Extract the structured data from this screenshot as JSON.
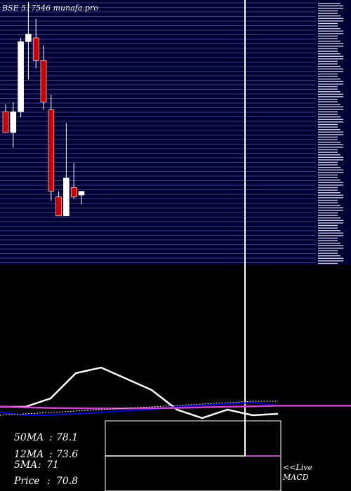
{
  "header": {
    "title": "BSE 517546  munafa.pro"
  },
  "stats": [
    {
      "label": "50MA",
      "value": "78.1"
    },
    {
      "label": "12MA",
      "value": "73.6"
    },
    {
      "label": "5MA",
      "value": "71"
    },
    {
      "label": "Price",
      "value": "70.8"
    }
  ],
  "macd": {
    "line1": "<<Live",
    "line2": "MACD"
  },
  "colors": {
    "panel_bg": "#000033",
    "grid": "#3b3b88",
    "up": "#ffffff",
    "down": "#cc0000",
    "signal": "#0000cc",
    "ma": "#cc44cc",
    "line": "#ffffff"
  },
  "chart_data": [
    {
      "type": "candlestick",
      "title": "BSE 517546  munafa.pro",
      "ylim": [
        55,
        125
      ],
      "grid": true,
      "candles": [
        {
          "o": 95.5,
          "h": 97.5,
          "l": 90.0,
          "c": 90.0,
          "dir": "down"
        },
        {
          "o": 90.0,
          "h": 98.0,
          "l": 86.0,
          "c": 95.5,
          "dir": "up"
        },
        {
          "o": 95.5,
          "h": 115.0,
          "l": 94.0,
          "c": 114.0,
          "dir": "up"
        },
        {
          "o": 114.0,
          "h": 124.5,
          "l": 104.0,
          "c": 116.0,
          "dir": "up"
        },
        {
          "o": 115.0,
          "h": 120.0,
          "l": 107.0,
          "c": 109.0,
          "dir": "down"
        },
        {
          "o": 109.0,
          "h": 113.0,
          "l": 96.0,
          "c": 98.0,
          "dir": "down"
        },
        {
          "o": 96.0,
          "h": 100.0,
          "l": 72.0,
          "c": 74.5,
          "dir": "down"
        },
        {
          "o": 73.0,
          "h": 74.5,
          "l": 68.0,
          "c": 68.0,
          "dir": "down"
        },
        {
          "o": 68.0,
          "h": 92.5,
          "l": 68.0,
          "c": 78.0,
          "dir": "up"
        },
        {
          "o": 75.5,
          "h": 82.0,
          "l": 72.5,
          "c": 73.0,
          "dir": "down"
        },
        {
          "o": 73.5,
          "h": 74.0,
          "l": 71.0,
          "c": 74.5,
          "dir": "up"
        }
      ]
    },
    {
      "type": "line",
      "title": "",
      "ylim": [
        -25,
        25
      ],
      "series": [
        {
          "values": [
            0,
            0,
            3,
            12,
            14,
            10,
            6,
            -1,
            -4,
            -1,
            -3,
            -2.5
          ]
        },
        {
          "values": [
            -2,
            -3,
            -3,
            -2.5,
            -2,
            -1.5,
            -1,
            0,
            0.5,
            1,
            1.5,
            0.5
          ]
        },
        {
          "values": [
            0,
            -0.2,
            -0.4,
            -0.5,
            -0.6,
            -0.6,
            -0.5,
            -0.4,
            -0.2,
            0,
            0.2,
            0.4
          ]
        },
        {
          "values": [
            -3,
            -2.5,
            -2,
            -1.5,
            -1,
            -0.5,
            0,
            0.5,
            1,
            1.5,
            2,
            2
          ]
        }
      ]
    }
  ]
}
